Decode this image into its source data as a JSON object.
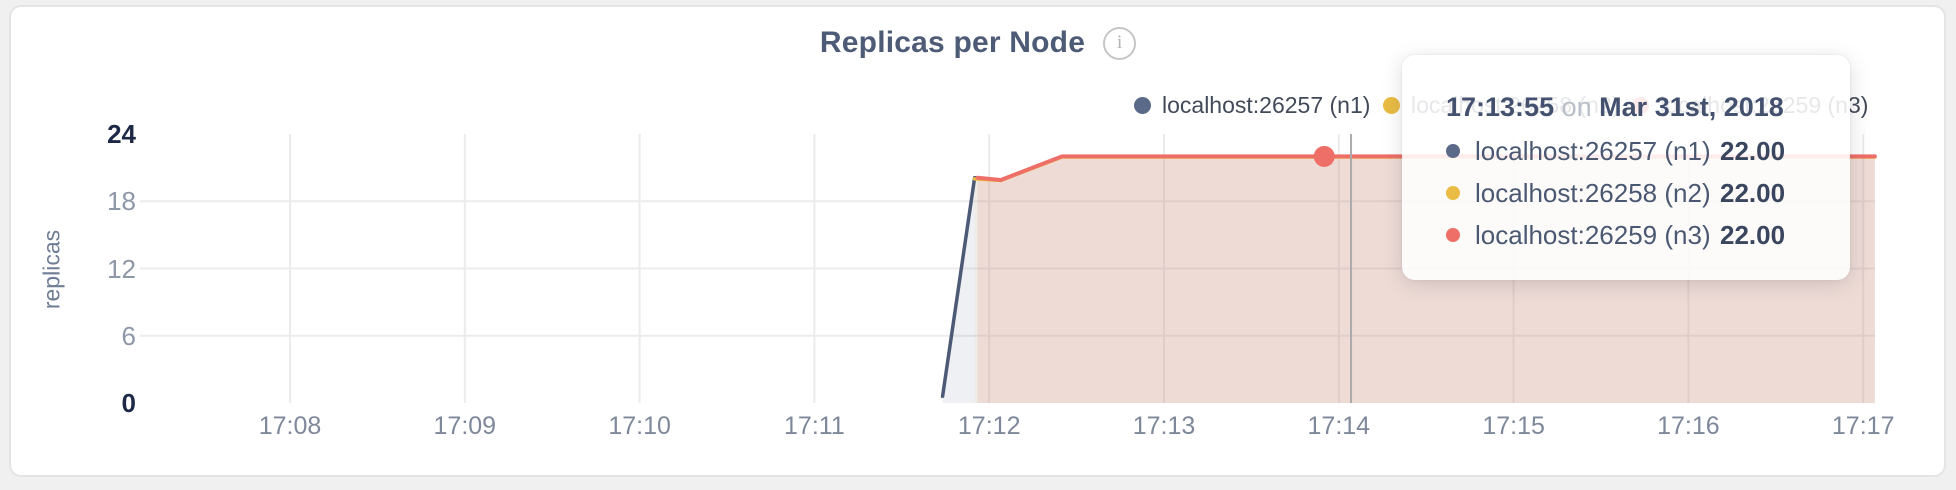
{
  "card": {
    "title": "Replicas per Node",
    "info_icon_glyph": "i"
  },
  "legend": {
    "items": [
      {
        "label": "localhost:26257 (n1)",
        "color": "#5b6a89"
      },
      {
        "label": "localhost:26258 (n2)",
        "color": "#eabc43"
      },
      {
        "label": "localhost:26259 (n3)",
        "color": "#ee6f67"
      }
    ]
  },
  "tooltip": {
    "time": "17:13:55",
    "preposition": "on",
    "date": "Mar 31st, 2018",
    "rows": [
      {
        "label": "localhost:26257 (n1)",
        "value": "22.00",
        "color": "#5b6a89"
      },
      {
        "label": "localhost:26258 (n2)",
        "value": "22.00",
        "color": "#eabc43"
      },
      {
        "label": "localhost:26259 (n3)",
        "value": "22.00",
        "color": "#ee6f67"
      }
    ]
  },
  "chart_data": {
    "type": "area",
    "title": "Replicas per Node",
    "ylabel": "replicas",
    "xlabel": "",
    "ylim": [
      0,
      24
    ],
    "y_ticks": [
      24,
      18,
      12,
      6,
      0
    ],
    "x_axis_start": "17:08:00",
    "x_ticks": [
      "17:08",
      "17:09",
      "17:10",
      "17:11",
      "17:12",
      "17:13",
      "17:14",
      "17:15",
      "17:16",
      "17:17"
    ],
    "grid": "on",
    "legend_position": "top-right",
    "series": [
      {
        "name": "localhost:26257 (n1)",
        "line_color": "#4c5a76",
        "fill_color": "rgba(95,108,135,0.10)",
        "points": [
          [
            "17:11:44",
            0.6
          ],
          [
            "17:11:55",
            20.1
          ],
          [
            "17:12:04",
            19.9
          ],
          [
            "17:12:25",
            22
          ],
          [
            "17:17:04",
            22
          ]
        ]
      },
      {
        "name": "localhost:26258 (n2)",
        "line_color": "#edbd3a",
        "fill_color": "rgba(242,190,44,0.06)",
        "points": [
          [
            "17:11:55",
            20.0
          ],
          [
            "17:12:04",
            19.85
          ],
          [
            "17:12:25",
            21.95
          ],
          [
            "17:17:04",
            21.95
          ]
        ]
      },
      {
        "name": "localhost:26259 (n3)",
        "line_color": "#ee6f67",
        "fill_color": "rgba(240,107,101,0.13)",
        "points": [
          [
            "17:11:56",
            20.1
          ],
          [
            "17:12:04",
            19.9
          ],
          [
            "17:12:25",
            22
          ],
          [
            "17:17:04",
            22
          ]
        ]
      }
    ],
    "hover": {
      "time": "17:13:55",
      "date": "Mar 31st, 2018",
      "series_index": 2,
      "value": 22
    }
  }
}
